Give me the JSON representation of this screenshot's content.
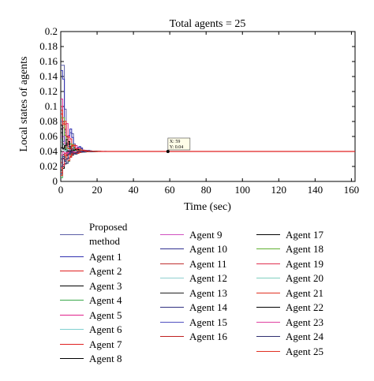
{
  "chart_data": {
    "type": "line",
    "title": "Total agents = 25",
    "xlabel": "Time (sec)",
    "ylabel": "Local states of agents",
    "xlim": [
      0,
      162
    ],
    "ylim": [
      0,
      0.2
    ],
    "xticks": [
      "0",
      "20",
      "40",
      "60",
      "80",
      "100",
      "120",
      "140",
      "160"
    ],
    "yticks": [
      "0",
      "0.02",
      "0.04",
      "0.06",
      "0.08",
      "0.1",
      "0.12",
      "0.14",
      "0.16",
      "0.18",
      "0.2"
    ],
    "grid": false,
    "legend_position": "bottom",
    "consensus_value": 0.04,
    "datatip": {
      "x": 59,
      "y": 0.04,
      "x_text": "X: 59",
      "y_text": "Y: 0.04"
    },
    "series": [
      {
        "name": "Proposed method",
        "color": "#5b5ea6",
        "initial": 0.155,
        "peak_t": 2
      },
      {
        "name": "Agent 1",
        "color": "#3030b0",
        "initial": 0.148,
        "peak_t": 3
      },
      {
        "name": "Agent 2",
        "color": "#e02020",
        "initial": 0.1,
        "peak_t": 1
      },
      {
        "name": "Agent 3",
        "color": "#000000",
        "initial": 0.07,
        "peak_t": 1
      },
      {
        "name": "Agent 4",
        "color": "#3aa84a",
        "initial": 0.005,
        "peak_t": 1
      },
      {
        "name": "Agent 5",
        "color": "#e0208a",
        "initial": 0.11,
        "peak_t": 1
      },
      {
        "name": "Agent 6",
        "color": "#7fd0d0",
        "initial": 0.02,
        "peak_t": 1
      },
      {
        "name": "Agent 7",
        "color": "#e02020",
        "initial": 0.09,
        "peak_t": 1
      },
      {
        "name": "Agent 8",
        "color": "#000000",
        "initial": 0.015,
        "peak_t": 1
      },
      {
        "name": "Agent 9",
        "color": "#d050c0",
        "initial": 0.06,
        "peak_t": 1
      },
      {
        "name": "Agent 10",
        "color": "#303090",
        "initial": 0.03,
        "peak_t": 1
      },
      {
        "name": "Agent 11",
        "color": "#c03030",
        "initial": 0.012,
        "peak_t": 1
      },
      {
        "name": "Agent 12",
        "color": "#8fd0d0",
        "initial": 0.05,
        "peak_t": 1
      },
      {
        "name": "Agent 13",
        "color": "#202020",
        "initial": 0.065,
        "peak_t": 1
      },
      {
        "name": "Agent 14",
        "color": "#303080",
        "initial": 0.01,
        "peak_t": 1
      },
      {
        "name": "Agent 15",
        "color": "#5050c0",
        "initial": 0.08,
        "peak_t": 1
      },
      {
        "name": "Agent 16",
        "color": "#c02020",
        "initial": 0.025,
        "peak_t": 1
      },
      {
        "name": "Agent 17",
        "color": "#000000",
        "initial": 0.045,
        "peak_t": 1
      },
      {
        "name": "Agent 18",
        "color": "#60b030",
        "initial": 0.085,
        "peak_t": 1
      },
      {
        "name": "Agent 19",
        "color": "#e03050",
        "initial": 0.018,
        "peak_t": 1
      },
      {
        "name": "Agent 20",
        "color": "#80d0c0",
        "initial": 0.055,
        "peak_t": 1
      },
      {
        "name": "Agent 21",
        "color": "#e03020",
        "initial": 0.008,
        "peak_t": 1
      },
      {
        "name": "Agent 22",
        "color": "#000000",
        "initial": 0.075,
        "peak_t": 1
      },
      {
        "name": "Agent 23",
        "color": "#e040a0",
        "initial": 0.035,
        "peak_t": 1
      },
      {
        "name": "Agent 24",
        "color": "#303070",
        "initial": 0.02,
        "peak_t": 1
      },
      {
        "name": "Agent 25",
        "color": "#e03020",
        "initial": 0.095,
        "peak_t": 1
      }
    ]
  }
}
